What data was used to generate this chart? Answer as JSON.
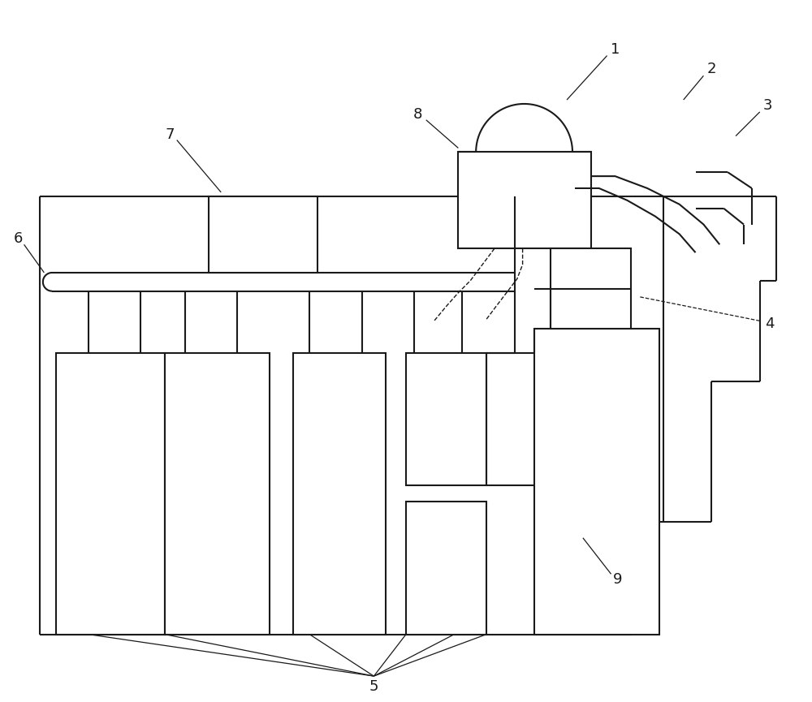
{
  "bg_color": "#ffffff",
  "lc": "#1a1a1a",
  "lw": 1.5,
  "alw": 0.9,
  "fs": 13
}
